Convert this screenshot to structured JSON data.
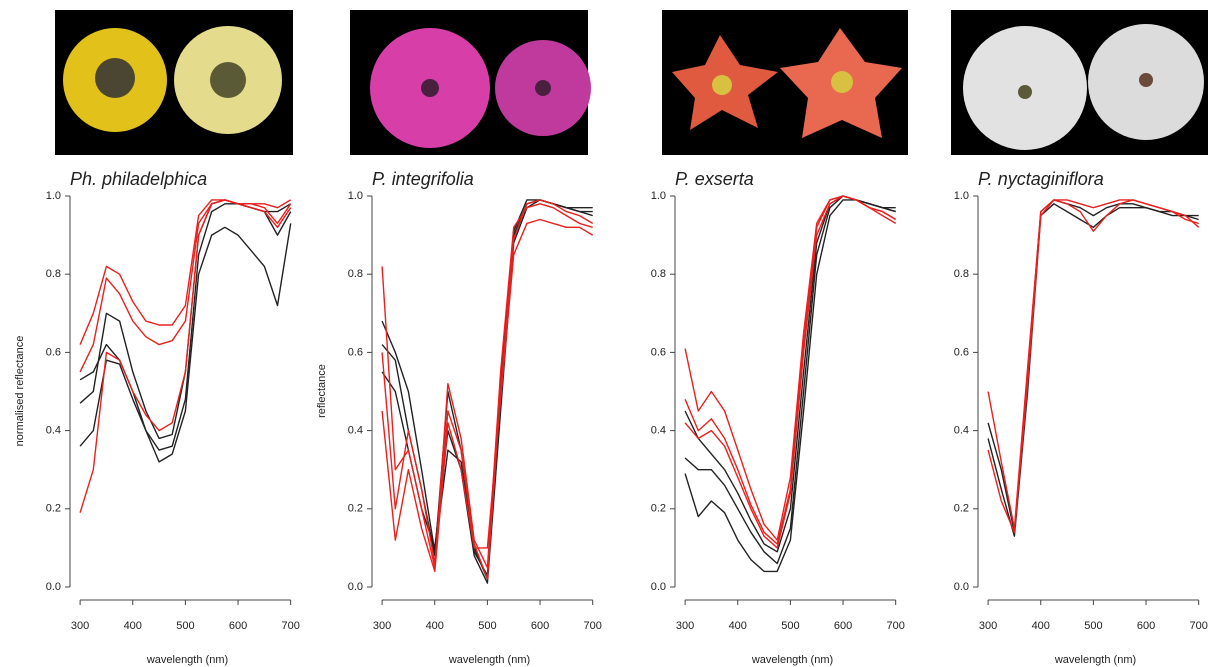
{
  "chart_data": [
    {
      "type": "line",
      "title": "Ph. philadelphica",
      "ylabel": "normalised reflectance",
      "xlabel": "wavelength (nm)",
      "x": [
        300,
        325,
        350,
        375,
        400,
        425,
        450,
        475,
        500,
        525,
        550,
        575,
        600,
        625,
        650,
        675,
        700
      ],
      "xlim": [
        296,
        712
      ],
      "ylim": [
        0,
        1
      ],
      "xticks": [
        300,
        400,
        500,
        600,
        700
      ],
      "yticks": [
        {
          "value": 0,
          "label": "0.0"
        },
        0.2,
        0.4,
        0.6,
        0.8,
        {
          "value": 1,
          "label": "1.0"
        }
      ],
      "series": [
        {
          "color": "#222222",
          "values": [
            0.47,
            0.5,
            0.7,
            0.68,
            0.55,
            0.45,
            0.38,
            0.39,
            0.55,
            0.9,
            0.98,
            0.99,
            0.98,
            0.97,
            0.96,
            0.96,
            0.98
          ]
        },
        {
          "color": "#222222",
          "values": [
            0.36,
            0.4,
            0.58,
            0.57,
            0.48,
            0.4,
            0.35,
            0.36,
            0.48,
            0.85,
            0.96,
            0.98,
            0.98,
            0.97,
            0.96,
            0.9,
            0.96
          ]
        },
        {
          "color": "#222222",
          "values": [
            0.53,
            0.55,
            0.62,
            0.58,
            0.5,
            0.4,
            0.32,
            0.34,
            0.45,
            0.8,
            0.9,
            0.92,
            0.9,
            0.86,
            0.82,
            0.72,
            0.93
          ]
        },
        {
          "color": "#e8201e",
          "values": [
            0.62,
            0.7,
            0.82,
            0.8,
            0.73,
            0.68,
            0.67,
            0.67,
            0.72,
            0.95,
            0.99,
            0.99,
            0.98,
            0.98,
            0.98,
            0.97,
            0.99
          ]
        },
        {
          "color": "#e8201e",
          "values": [
            0.55,
            0.62,
            0.79,
            0.75,
            0.68,
            0.64,
            0.62,
            0.63,
            0.68,
            0.93,
            0.98,
            0.99,
            0.98,
            0.98,
            0.97,
            0.93,
            0.98
          ]
        },
        {
          "color": "#e8201e",
          "values": [
            0.19,
            0.3,
            0.6,
            0.58,
            0.5,
            0.44,
            0.4,
            0.42,
            0.55,
            0.9,
            0.98,
            0.99,
            0.98,
            0.97,
            0.96,
            0.92,
            0.97
          ]
        }
      ]
    },
    {
      "type": "line",
      "title": "P. integrifolia",
      "ylabel": "reflectance",
      "xlabel": "wavelength (nm)",
      "x": [
        300,
        325,
        350,
        375,
        400,
        425,
        450,
        475,
        500,
        525,
        550,
        575,
        600,
        625,
        650,
        675,
        700
      ],
      "xlim": [
        296,
        712
      ],
      "ylim": [
        0,
        1
      ],
      "xticks": [
        300,
        400,
        500,
        600,
        700
      ],
      "yticks": [
        {
          "value": 0,
          "label": "0.0"
        },
        0.2,
        0.4,
        0.6,
        0.8,
        {
          "value": 1,
          "label": "1.0"
        }
      ],
      "series": [
        {
          "color": "#222222",
          "values": [
            0.62,
            0.58,
            0.4,
            0.25,
            0.08,
            0.5,
            0.35,
            0.1,
            0.02,
            0.5,
            0.9,
            0.98,
            0.99,
            0.98,
            0.97,
            0.96,
            0.96
          ]
        },
        {
          "color": "#222222",
          "values": [
            0.55,
            0.5,
            0.35,
            0.2,
            0.1,
            0.4,
            0.3,
            0.08,
            0.01,
            0.45,
            0.88,
            0.97,
            0.99,
            0.98,
            0.97,
            0.96,
            0.95
          ]
        },
        {
          "color": "#222222",
          "values": [
            0.68,
            0.6,
            0.5,
            0.3,
            0.09,
            0.35,
            0.32,
            0.09,
            0.03,
            0.52,
            0.91,
            0.99,
            0.99,
            0.98,
            0.97,
            0.97,
            0.97
          ]
        },
        {
          "color": "#e8201e",
          "values": [
            0.82,
            0.3,
            0.35,
            0.2,
            0.05,
            0.52,
            0.38,
            0.12,
            0.05,
            0.55,
            0.92,
            0.97,
            0.98,
            0.97,
            0.95,
            0.93,
            0.92
          ]
        },
        {
          "color": "#e8201e",
          "values": [
            0.45,
            0.12,
            0.3,
            0.15,
            0.04,
            0.42,
            0.3,
            0.1,
            0.1,
            0.48,
            0.85,
            0.93,
            0.94,
            0.93,
            0.92,
            0.92,
            0.9
          ]
        },
        {
          "color": "#e8201e",
          "values": [
            0.6,
            0.2,
            0.4,
            0.25,
            0.06,
            0.45,
            0.35,
            0.11,
            0.02,
            0.5,
            0.89,
            0.98,
            0.99,
            0.98,
            0.96,
            0.95,
            0.93
          ]
        }
      ]
    },
    {
      "type": "line",
      "title": "P. exserta",
      "xlabel": "wavelength (nm)",
      "x": [
        300,
        325,
        350,
        375,
        400,
        425,
        450,
        475,
        500,
        525,
        550,
        575,
        600,
        625,
        650,
        675,
        700
      ],
      "xlim": [
        296,
        712
      ],
      "ylim": [
        0,
        1
      ],
      "xticks": [
        300,
        400,
        500,
        600,
        700
      ],
      "yticks": [
        {
          "value": 0,
          "label": "0.0"
        },
        0.2,
        0.4,
        0.6,
        0.8,
        {
          "value": 1,
          "label": "1.0"
        }
      ],
      "series": [
        {
          "color": "#222222",
          "values": [
            0.33,
            0.3,
            0.3,
            0.26,
            0.2,
            0.14,
            0.09,
            0.06,
            0.15,
            0.5,
            0.85,
            0.97,
            1.0,
            0.99,
            0.98,
            0.97,
            0.97
          ]
        },
        {
          "color": "#222222",
          "values": [
            0.29,
            0.18,
            0.22,
            0.19,
            0.12,
            0.07,
            0.04,
            0.04,
            0.12,
            0.45,
            0.8,
            0.95,
            0.99,
            0.99,
            0.98,
            0.97,
            0.96
          ]
        },
        {
          "color": "#222222",
          "values": [
            0.45,
            0.38,
            0.34,
            0.3,
            0.24,
            0.17,
            0.11,
            0.09,
            0.2,
            0.55,
            0.88,
            0.98,
            1.0,
            0.99,
            0.98,
            0.97,
            0.96
          ]
        },
        {
          "color": "#e8201e",
          "values": [
            0.61,
            0.45,
            0.5,
            0.45,
            0.35,
            0.25,
            0.16,
            0.12,
            0.28,
            0.65,
            0.93,
            0.99,
            1.0,
            0.99,
            0.97,
            0.96,
            0.94
          ]
        },
        {
          "color": "#e8201e",
          "values": [
            0.48,
            0.4,
            0.43,
            0.38,
            0.3,
            0.21,
            0.14,
            0.11,
            0.25,
            0.62,
            0.92,
            0.99,
            1.0,
            0.99,
            0.97,
            0.95,
            0.93
          ]
        },
        {
          "color": "#e8201e",
          "values": [
            0.42,
            0.38,
            0.4,
            0.36,
            0.28,
            0.2,
            0.13,
            0.1,
            0.24,
            0.6,
            0.9,
            0.98,
            1.0,
            0.99,
            0.97,
            0.96,
            0.94
          ]
        }
      ]
    },
    {
      "type": "line",
      "title": "P. nyctaginiflora",
      "xlabel": "wavelength (nm)",
      "x": [
        300,
        325,
        350,
        375,
        400,
        425,
        450,
        475,
        500,
        525,
        550,
        575,
        600,
        625,
        650,
        675,
        700
      ],
      "xlim": [
        296,
        712
      ],
      "ylim": [
        0,
        1
      ],
      "xticks": [
        300,
        400,
        500,
        600,
        700
      ],
      "yticks": [
        {
          "value": 0,
          "label": "0.0"
        },
        0.2,
        0.4,
        0.6,
        0.8,
        {
          "value": 1,
          "label": "1.0"
        }
      ],
      "series": [
        {
          "color": "#222222",
          "values": [
            0.42,
            0.3,
            0.14,
            0.55,
            0.96,
            0.99,
            0.98,
            0.97,
            0.95,
            0.97,
            0.98,
            0.98,
            0.97,
            0.96,
            0.96,
            0.95,
            0.95
          ]
        },
        {
          "color": "#222222",
          "values": [
            0.38,
            0.25,
            0.13,
            0.5,
            0.95,
            0.98,
            0.96,
            0.94,
            0.92,
            0.95,
            0.97,
            0.97,
            0.97,
            0.96,
            0.95,
            0.95,
            0.94
          ]
        },
        {
          "color": "#e8201e",
          "values": [
            0.5,
            0.32,
            0.15,
            0.56,
            0.96,
            0.99,
            0.98,
            0.96,
            0.91,
            0.95,
            0.98,
            0.99,
            0.98,
            0.97,
            0.96,
            0.94,
            0.93
          ]
        },
        {
          "color": "#e8201e",
          "values": [
            0.35,
            0.22,
            0.14,
            0.52,
            0.95,
            0.99,
            0.99,
            0.98,
            0.97,
            0.98,
            0.99,
            0.99,
            0.98,
            0.97,
            0.96,
            0.95,
            0.92
          ]
        }
      ]
    }
  ]
}
